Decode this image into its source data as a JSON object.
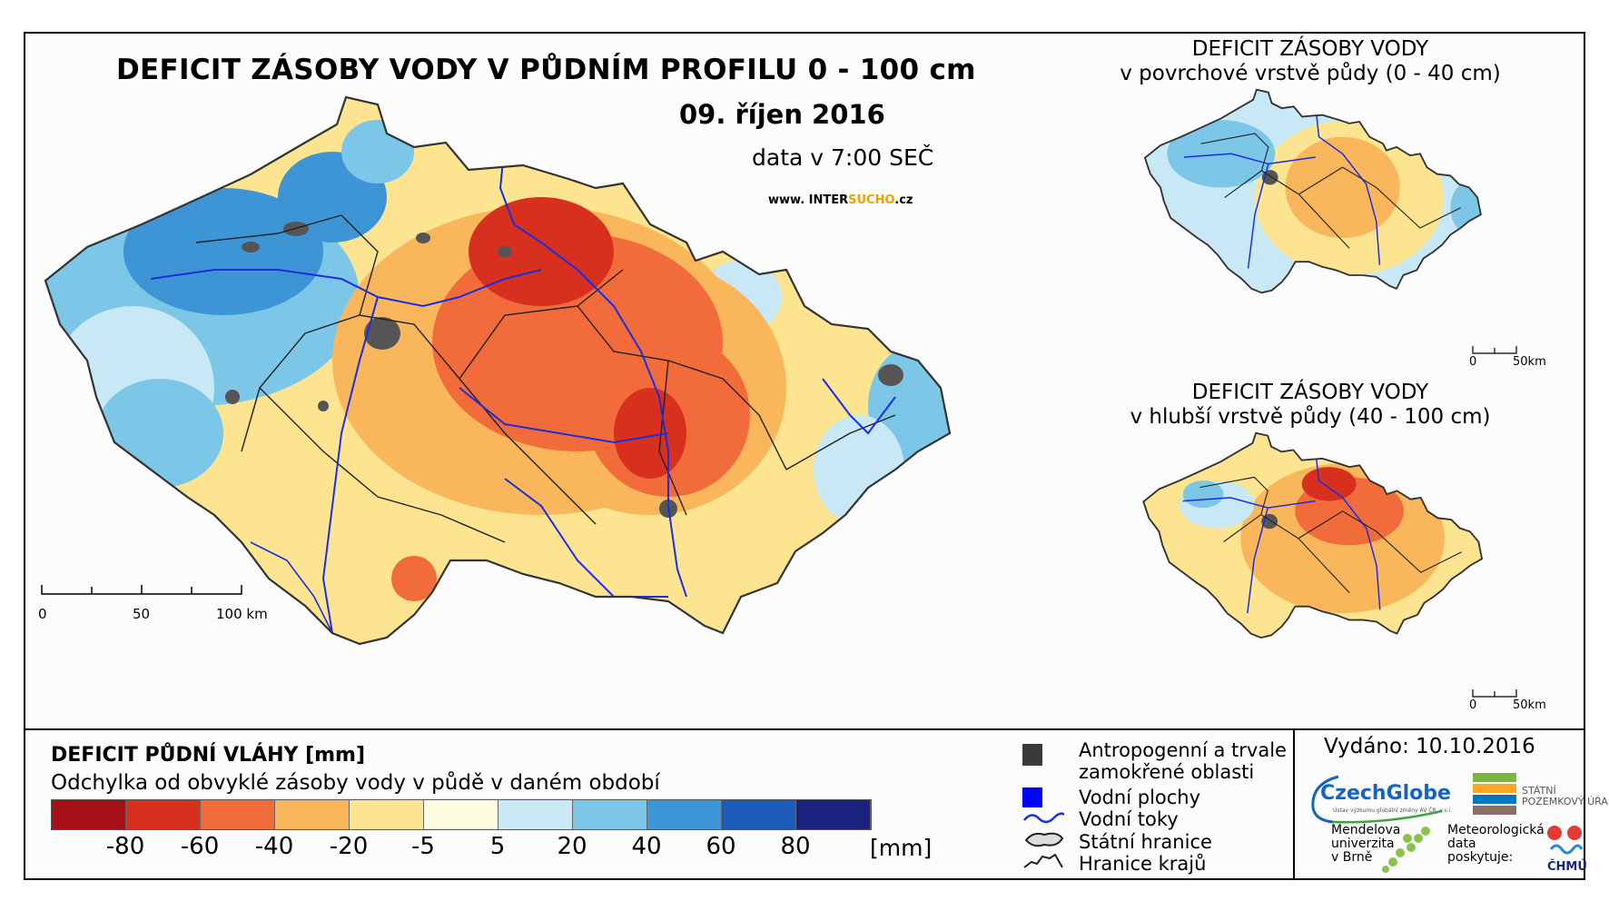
{
  "title": "DEFICIT ZÁSOBY VODY V PŮDNÍM PROFILU 0 - 100 cm",
  "date": "09. říjen 2016",
  "data_time": "data v 7:00 SEČ",
  "website": {
    "prefix": "www. INTER",
    "accent": "SUCHO",
    "suffix": ".cz"
  },
  "main_scale": {
    "labels": [
      "0",
      "50",
      "100 km"
    ]
  },
  "inset_top": {
    "title_line1": "DEFICIT ZÁSOBY VODY",
    "title_line2": "v povrchové vrstvě půdy (0 - 40 cm)",
    "scale": [
      "0",
      "50km"
    ]
  },
  "inset_bottom": {
    "title_line1": "DEFICIT ZÁSOBY VODY",
    "title_line2": "v hlubší vrstvě půdy (40 - 100 cm)",
    "scale": [
      "0",
      "50km"
    ]
  },
  "legend": {
    "title": "DEFICIT PŮDNÍ VLÁHY [mm]",
    "subtitle": "Odchylka od obvyklé zásoby vody v půdě v daném období",
    "colors": [
      "#a50f15",
      "#d7301f",
      "#f26b3a",
      "#f9b65b",
      "#fce491",
      "#fffde0",
      "#c7e8f4",
      "#7cc6e8",
      "#3d95d6",
      "#1c5cb8",
      "#1a237e"
    ],
    "ticks": [
      "-80",
      "-60",
      "-40",
      "-20",
      "-5",
      "5",
      "20",
      "40",
      "60",
      "80"
    ],
    "unit": "[mm]"
  },
  "symbols": {
    "anthropogenic_line1": "Antropogenní a trvale",
    "anthropogenic_line2": "zamokřené oblasti",
    "water_bodies": "Vodní plochy",
    "rivers": "Vodní toky",
    "state_border": "Státní hranice",
    "region_border": "Hranice krajů"
  },
  "issued": "Vydáno: 10.10.2016",
  "logos": {
    "czechglobe": "CzechGlobe",
    "czechglobe_sub": "Ústav výzkumu globální změny AV ČR, v.v.i.",
    "spu_line1": "STÁTNÍ",
    "spu_line2": "POZEMKOVÝ ÚŘAD",
    "mendel_line1": "Mendelova",
    "mendel_line2": "univerzita",
    "mendel_line3": "v Brně",
    "meteo_line1": "Meteorologická",
    "meteo_line2": "data",
    "meteo_line3": "poskytuje:",
    "chmu": "ČHMÚ"
  }
}
